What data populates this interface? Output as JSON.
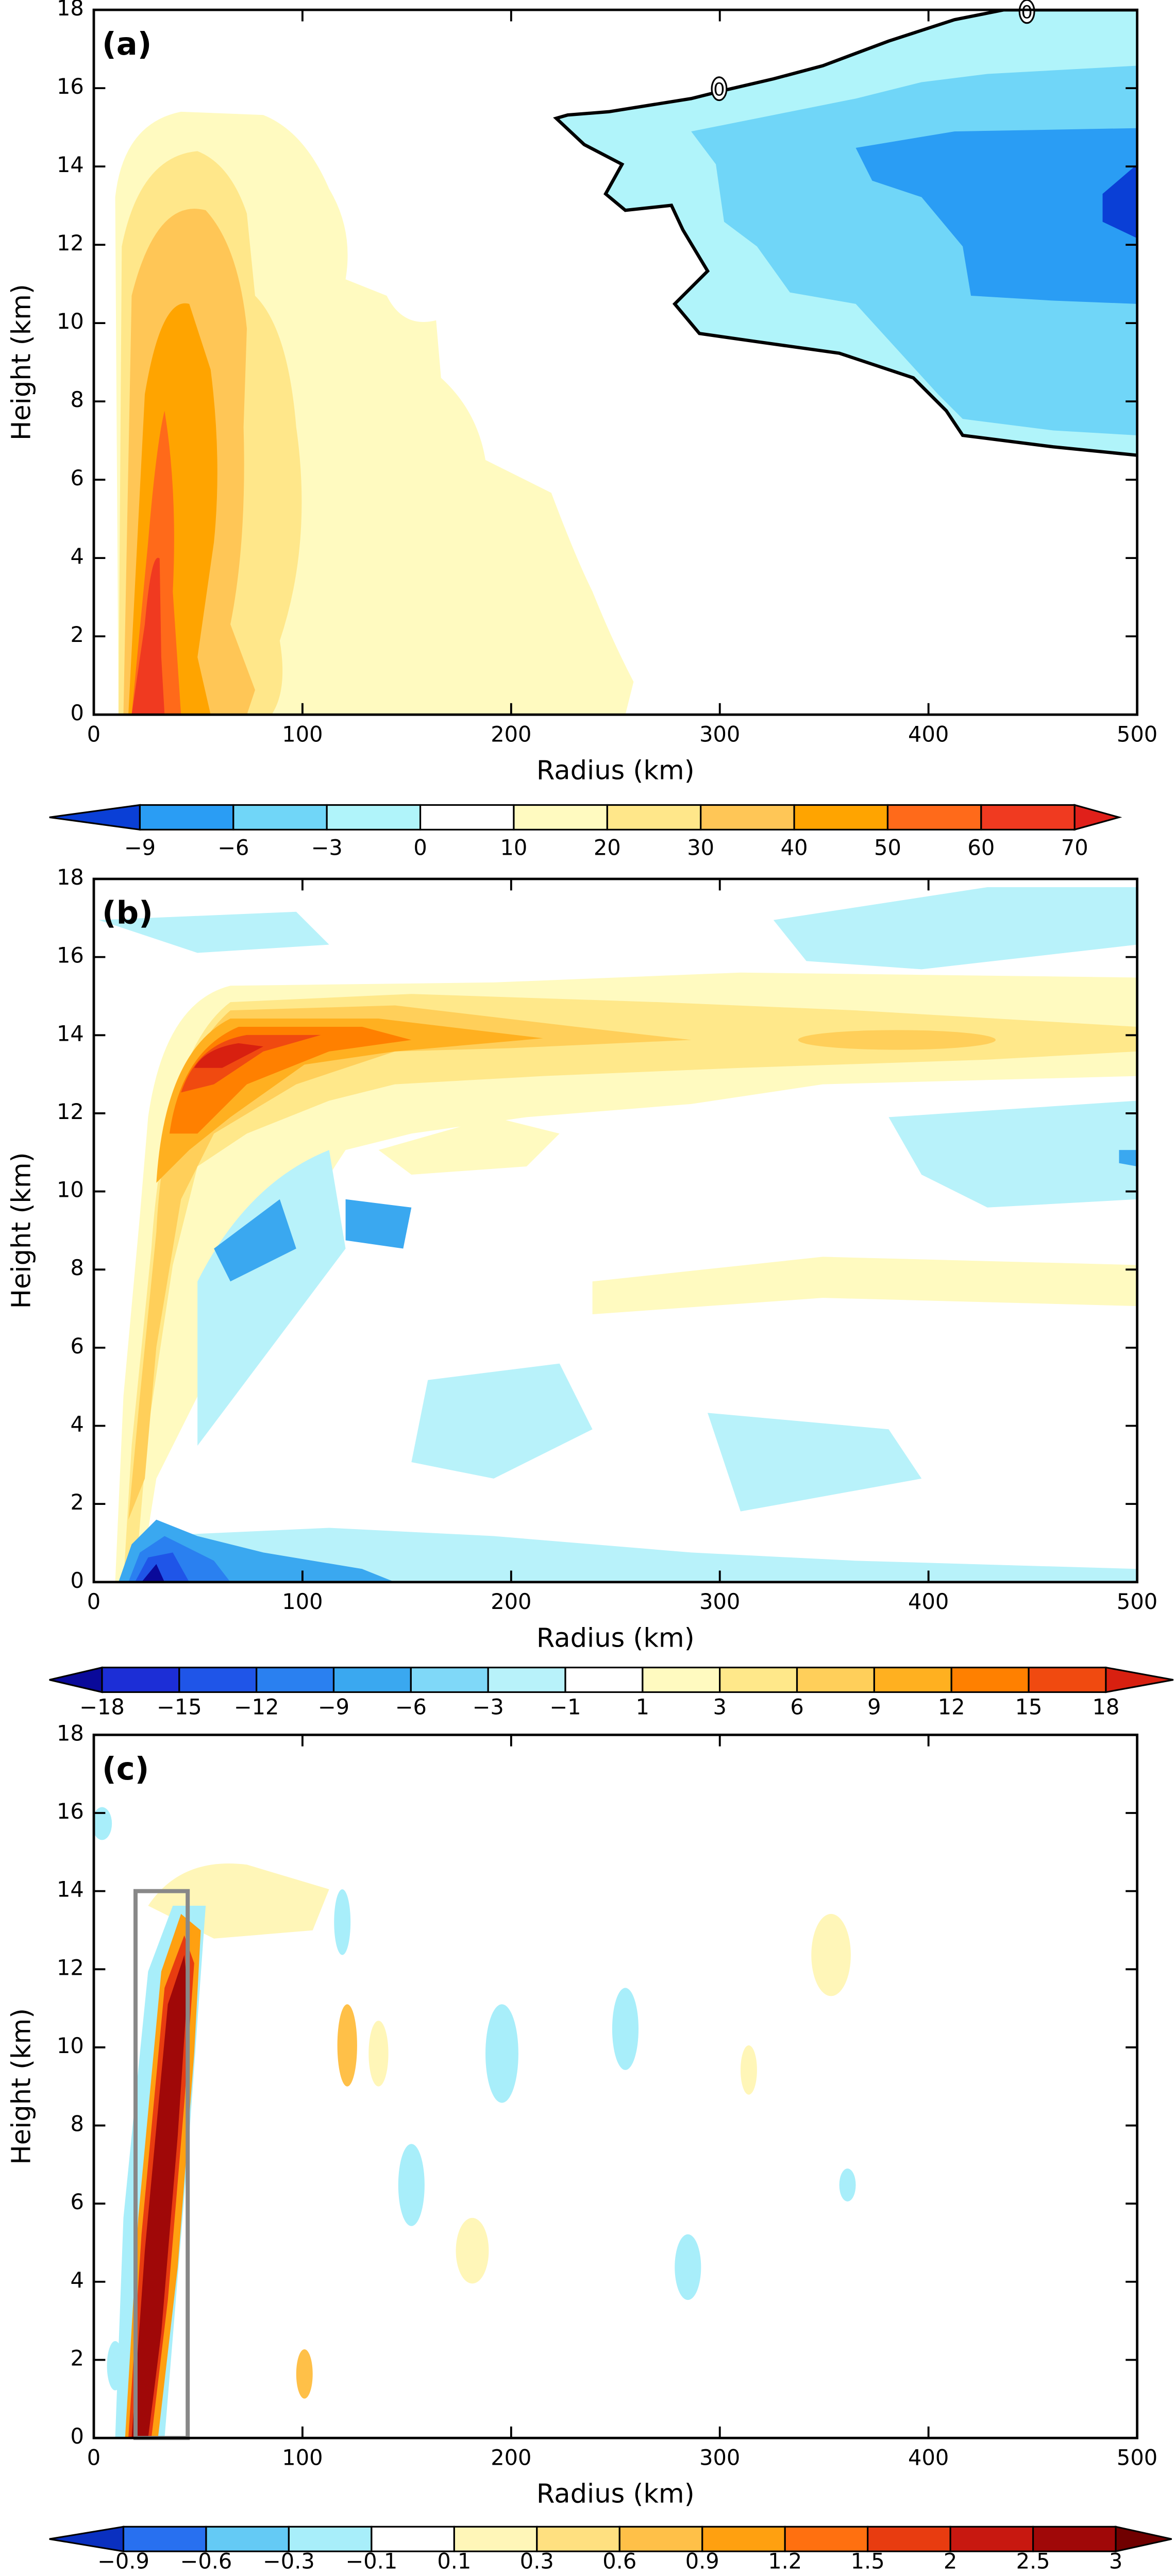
{
  "chart_data": [
    {
      "type": "contour",
      "panel_label": "(a)",
      "xlabel": "Radius (km)",
      "ylabel": "Height (km)",
      "xlim": [
        0,
        500
      ],
      "ylim": [
        0,
        18
      ],
      "xticks": [
        0,
        100,
        200,
        300,
        400,
        500
      ],
      "yticks": [
        0,
        2,
        4,
        6,
        8,
        10,
        12,
        14,
        16,
        18
      ],
      "contour_labels": [
        0,
        0
      ],
      "colorbar": {
        "levels": [
          {
            "value": -9,
            "label": "−9"
          },
          {
            "value": -6,
            "label": "−6"
          },
          {
            "value": -3,
            "label": "−3"
          },
          0,
          10,
          20,
          30,
          40,
          50,
          60,
          70
        ],
        "colors": [
          "#0a3fd6",
          "#2a9df4",
          "#70d6f8",
          "#b0f4fa",
          "#ffffff",
          "#fffac0",
          "#ffe78a",
          "#ffc656",
          "#ffa400",
          "#ff6a1a",
          "#f03a20",
          "#e0201a"
        ]
      }
    },
    {
      "type": "contour",
      "panel_label": "(b)",
      "xlabel": "Radius (km)",
      "ylabel": "Height (km)",
      "xlim": [
        0,
        500
      ],
      "ylim": [
        0,
        18
      ],
      "xticks": [
        0,
        100,
        200,
        300,
        400,
        500
      ],
      "yticks": [
        0,
        2,
        4,
        6,
        8,
        10,
        12,
        14,
        16,
        18
      ],
      "colorbar": {
        "levels": [
          {
            "value": -18,
            "label": "−18"
          },
          {
            "value": -15,
            "label": "−15"
          },
          {
            "value": -12,
            "label": "−12"
          },
          {
            "value": -9,
            "label": "−9"
          },
          {
            "value": -6,
            "label": "−6"
          },
          {
            "value": -3,
            "label": "−3"
          },
          {
            "value": -1,
            "label": "−1"
          },
          1,
          3,
          6,
          9,
          12,
          15,
          18
        ],
        "colors": [
          "#0a0a9a",
          "#1c2ed6",
          "#1f55e8",
          "#2a80f0",
          "#3aa8f0",
          "#7fd8f8",
          "#b8f2fa",
          "#ffffff",
          "#fffac0",
          "#ffe88a",
          "#ffcf5a",
          "#ffb020",
          "#ff8000",
          "#f04a10",
          "#d82010"
        ]
      }
    },
    {
      "type": "contour",
      "panel_label": "(c)",
      "xlabel": "Radius (km)",
      "ylabel": "Height (km)",
      "xlim": [
        0,
        500
      ],
      "ylim": [
        0,
        18
      ],
      "xticks": [
        0,
        100,
        200,
        300,
        400,
        500
      ],
      "yticks": [
        0,
        2,
        4,
        6,
        8,
        10,
        12,
        14,
        16,
        18
      ],
      "highlight_box": {
        "x": [
          20,
          45
        ],
        "y": [
          0,
          14
        ],
        "color": "#888888"
      },
      "colorbar": {
        "levels": [
          {
            "value": -0.9,
            "label": "−0.9"
          },
          {
            "value": -0.6,
            "label": "−0.6"
          },
          {
            "value": -0.3,
            "label": "−0.3"
          },
          {
            "value": -0.1,
            "label": "−0.1"
          },
          0.1,
          0.3,
          0.6,
          0.9,
          1.2,
          1.5,
          2,
          2.5,
          3
        ],
        "colors": [
          "#0a30c0",
          "#2870f0",
          "#64caf5",
          "#a8eefa",
          "#ffffff",
          "#fff6b8",
          "#ffe080",
          "#ffc048",
          "#ffa010",
          "#ff7010",
          "#e83c10",
          "#c81810",
          "#a00808",
          "#700000"
        ]
      }
    }
  ]
}
